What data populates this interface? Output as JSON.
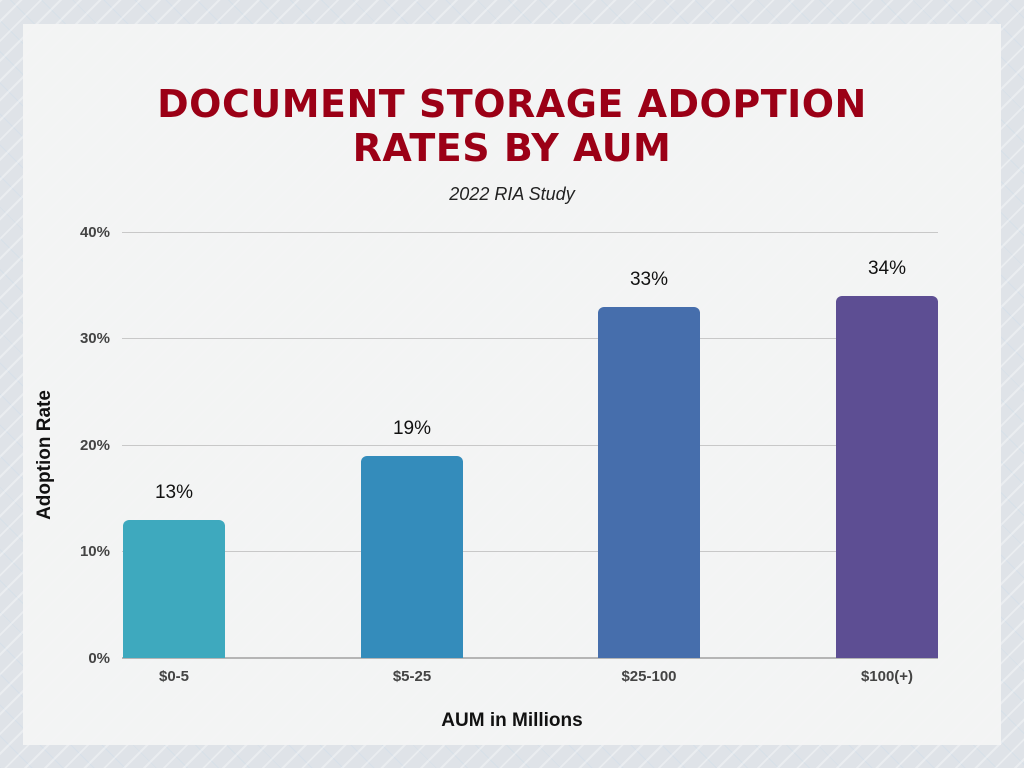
{
  "chart_data": {
    "type": "bar",
    "title": "DOCUMENT STORAGE ADOPTION RATES BY AUM",
    "title_lines": [
      "DOCUMENT STORAGE ADOPTION",
      "RATES BY AUM"
    ],
    "subtitle": "2022 RIA Study",
    "xlabel": "AUM in Millions",
    "ylabel": "Adoption Rate",
    "categories": [
      "$0-5",
      "$5-25",
      "$25-100",
      "$100(+)"
    ],
    "values": [
      13,
      19,
      33,
      34
    ],
    "value_labels": [
      "13%",
      "19%",
      "33%",
      "34%"
    ],
    "bar_colors": [
      "#3ea9be",
      "#348cbb",
      "#466eac",
      "#5d4e93"
    ],
    "ylim": [
      0,
      40
    ],
    "yticks": [
      0,
      10,
      20,
      30,
      40
    ],
    "ytick_labels": [
      "0%",
      "10%",
      "20%",
      "30%",
      "40%"
    ],
    "grid": true,
    "legend": null
  },
  "colors": {
    "title": "#9b0016",
    "panel": "#f4f4f4",
    "gridline": "#c8c8c8"
  }
}
